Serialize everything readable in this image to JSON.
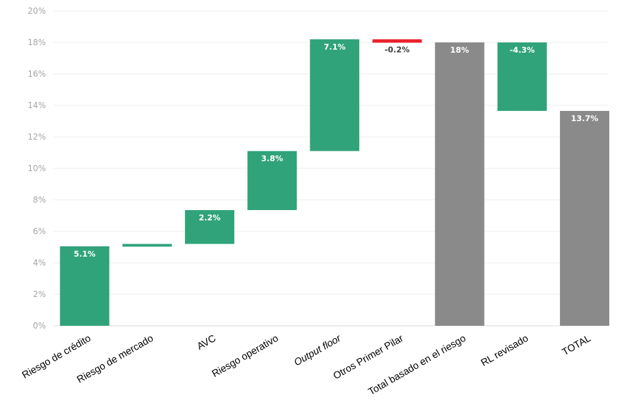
{
  "chart_data": {
    "type": "bar",
    "subtype": "waterfall",
    "title": "",
    "xlabel": "",
    "ylabel": "",
    "ylim": [
      0,
      20
    ],
    "y_ticks": [
      "0%",
      "2%",
      "4%",
      "6%",
      "8%",
      "10%",
      "12%",
      "14%",
      "16%",
      "18%",
      "20%"
    ],
    "grid": true,
    "legend": "none",
    "categories": [
      "Riesgo de crédito",
      "Riesgo de mercado",
      "AVC",
      "Riesgo operativo",
      "Output floor",
      "Otros Primer Pilar",
      "Total basado en el riesgo",
      "RL revisado",
      "TOTAL"
    ],
    "italic_categories": [
      "Output floor"
    ],
    "bars": [
      {
        "base": 0,
        "top": 5.05,
        "label": "5.1%",
        "kind": "increase"
      },
      {
        "base": 5.05,
        "top": 5.2,
        "label": "",
        "kind": "increase"
      },
      {
        "base": 5.2,
        "top": 7.35,
        "label": "2.2%",
        "kind": "increase"
      },
      {
        "base": 7.35,
        "top": 11.1,
        "label": "3.8%",
        "kind": "increase"
      },
      {
        "base": 11.1,
        "top": 18.2,
        "label": "7.1%",
        "kind": "increase"
      },
      {
        "base": 18.0,
        "top": 18.2,
        "label": "-0.2%",
        "kind": "decrease"
      },
      {
        "base": 0,
        "top": 18.0,
        "label": "18%",
        "kind": "total"
      },
      {
        "base": 13.65,
        "top": 18.0,
        "label": "-4.3%",
        "kind": "increase"
      },
      {
        "base": 0,
        "top": 13.65,
        "label": "13.7%",
        "kind": "total"
      }
    ],
    "colors": {
      "increase": "#31a37a",
      "decrease": "#e8212a",
      "total": "#8a8a8a",
      "grid": "#ececec",
      "axis_text": "#a6a6a6",
      "label_on_bar": "#ffffff",
      "label_dark": "#404040"
    }
  }
}
